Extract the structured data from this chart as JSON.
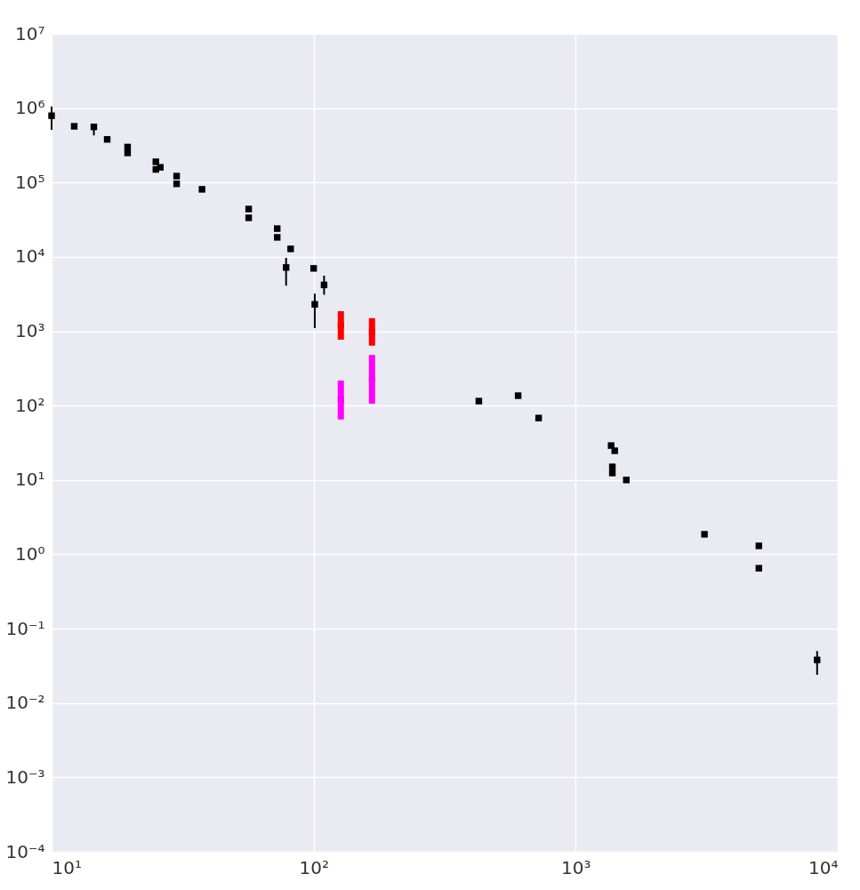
{
  "chart_data": {
    "type": "scatter",
    "log": "xy",
    "grid": true,
    "xlim": [
      10,
      10000
    ],
    "ylim": [
      0.0001,
      10000000
    ],
    "xticks": [
      {
        "value": 10,
        "label": "10¹"
      },
      {
        "value": 100,
        "label": "10²"
      },
      {
        "value": 1000,
        "label": "10³"
      },
      {
        "value": 10000,
        "label": "10⁴"
      }
    ],
    "yticks": [
      {
        "value": 0.0001,
        "label": "10⁻⁴"
      },
      {
        "value": 0.001,
        "label": "10⁻³"
      },
      {
        "value": 0.01,
        "label": "10⁻²"
      },
      {
        "value": 0.1,
        "label": "10⁻¹"
      },
      {
        "value": 1,
        "label": "10⁰"
      },
      {
        "value": 10,
        "label": "10¹"
      },
      {
        "value": 100,
        "label": "10²"
      },
      {
        "value": 1000,
        "label": "10³"
      },
      {
        "value": 10000,
        "label": "10⁴"
      },
      {
        "value": 100000,
        "label": "10⁵"
      },
      {
        "value": 1000000,
        "label": "10⁶"
      },
      {
        "value": 10000000,
        "label": "10⁷"
      }
    ],
    "series": [
      {
        "color": "#000000",
        "marker": "square",
        "x": [
          10,
          12.2,
          14.5,
          16.3,
          19.5,
          19.5,
          25,
          25,
          26,
          30,
          30,
          37.5,
          56.5,
          56.5,
          72.6,
          72.6,
          81.7,
          78.5,
          100,
          109.6,
          101,
          427,
          603,
          722,
          1365,
          1409,
          1380,
          1380,
          1560,
          3100,
          5000,
          5000,
          8340
        ],
        "values": [
          790000,
          570000,
          560000,
          380000,
          300000,
          250000,
          190000,
          150000,
          160000,
          122000,
          96000,
          81000,
          44000,
          33500,
          24000,
          18300,
          12800,
          7200,
          7000,
          4200,
          2300,
          115,
          136,
          68,
          29,
          24.7,
          15,
          12.4,
          10,
          1.86,
          1.3,
          0.65,
          0.038
        ],
        "errors": [
          [
            510000,
            1050000
          ],
          null,
          [
            430000,
            600000
          ],
          null,
          null,
          null,
          null,
          null,
          null,
          null,
          null,
          null,
          null,
          null,
          null,
          null,
          null,
          [
            4100,
            9700
          ],
          null,
          [
            3100,
            5600
          ],
          [
            1100,
            3200
          ],
          null,
          null,
          null,
          null,
          null,
          null,
          null,
          null,
          null,
          null,
          null,
          [
            0.024,
            0.05
          ]
        ]
      },
      {
        "color": "#ff0000",
        "marker": "square",
        "x": [
          127,
          167
        ],
        "values": [
          1200,
          980
        ],
        "errors": [
          [
            770,
            1860
          ],
          [
            640,
            1500
          ]
        ]
      },
      {
        "color": "#ff00ff",
        "marker": "square",
        "x": [
          127,
          167
        ],
        "values": [
          120,
          225
        ],
        "errors": [
          [
            65,
            217
          ],
          [
            106,
            480
          ]
        ]
      }
    ]
  }
}
